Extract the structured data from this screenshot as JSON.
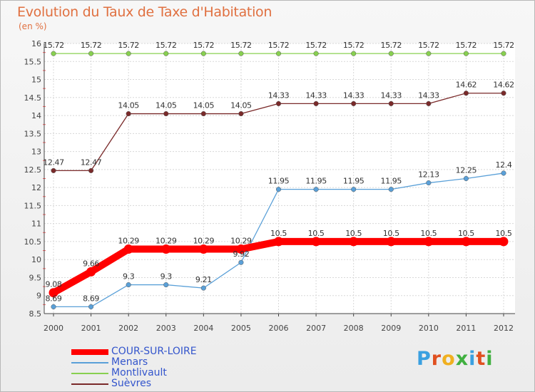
{
  "title": "Evolution du Taux de Taxe d'Habitation",
  "unit": "(en %)",
  "logo": {
    "text": "Proxiti",
    "letter_colors": [
      "#3aa0e0",
      "#e05020",
      "#f0b020",
      "#40b040",
      "#3aa0e0",
      "#e05020",
      "#40b040"
    ]
  },
  "chart_data": {
    "type": "line",
    "x": [
      "2000",
      "2001",
      "2002",
      "2003",
      "2004",
      "2005",
      "2006",
      "2007",
      "2008",
      "2009",
      "2010",
      "2011",
      "2012"
    ],
    "ylim": [
      8.5,
      16
    ],
    "yticks": [
      "8.5",
      "9",
      "9.5",
      "10",
      "10.5",
      "11",
      "11.5",
      "12",
      "12.5",
      "13",
      "13.5",
      "14",
      "14.5",
      "15",
      "15.5",
      "16"
    ],
    "grid": true,
    "legend_position": "bottom-left",
    "series": [
      {
        "name": "COUR-SUR-LOIRE",
        "color": "#ff0000",
        "values": [
          9.08,
          9.66,
          10.29,
          10.29,
          10.29,
          10.29,
          10.5,
          10.5,
          10.5,
          10.5,
          10.5,
          10.5,
          10.5
        ],
        "labels": [
          "9.08",
          "9.66",
          "10.29",
          "10.29",
          "10.29",
          "10.29",
          "10.5",
          "10.5",
          "10.5",
          "10.5",
          "10.5",
          "10.5",
          "10.5"
        ]
      },
      {
        "name": "Menars",
        "color": "#5aa0d8",
        "values": [
          8.69,
          8.69,
          9.3,
          9.3,
          9.21,
          9.92,
          11.95,
          11.95,
          11.95,
          11.95,
          12.13,
          12.25,
          12.4
        ],
        "labels": [
          "8.69",
          "8.69",
          "9.3",
          "9.3",
          "9.21",
          "9.92",
          "11.95",
          "11.95",
          "11.95",
          "11.95",
          "12.13",
          "12.25",
          "12.4"
        ]
      },
      {
        "name": "Montlivault",
        "color": "#88d050",
        "values": [
          15.72,
          15.72,
          15.72,
          15.72,
          15.72,
          15.72,
          15.72,
          15.72,
          15.72,
          15.72,
          15.72,
          15.72,
          15.72
        ],
        "labels": [
          "15.72",
          "15.72",
          "15.72",
          "15.72",
          "15.72",
          "15.72",
          "15.72",
          "15.72",
          "15.72",
          "15.72",
          "15.72",
          "15.72",
          "15.72"
        ]
      },
      {
        "name": "Suèvres",
        "color": "#7a2a2a",
        "values": [
          12.47,
          12.47,
          14.05,
          14.05,
          14.05,
          14.05,
          14.33,
          14.33,
          14.33,
          14.33,
          14.33,
          14.62,
          14.62
        ],
        "labels": [
          "12.47",
          "12.47",
          "14.05",
          "14.05",
          "14.05",
          "14.05",
          "14.33",
          "14.33",
          "14.33",
          "14.33",
          "14.33",
          "14.62",
          "14.62"
        ]
      }
    ]
  }
}
